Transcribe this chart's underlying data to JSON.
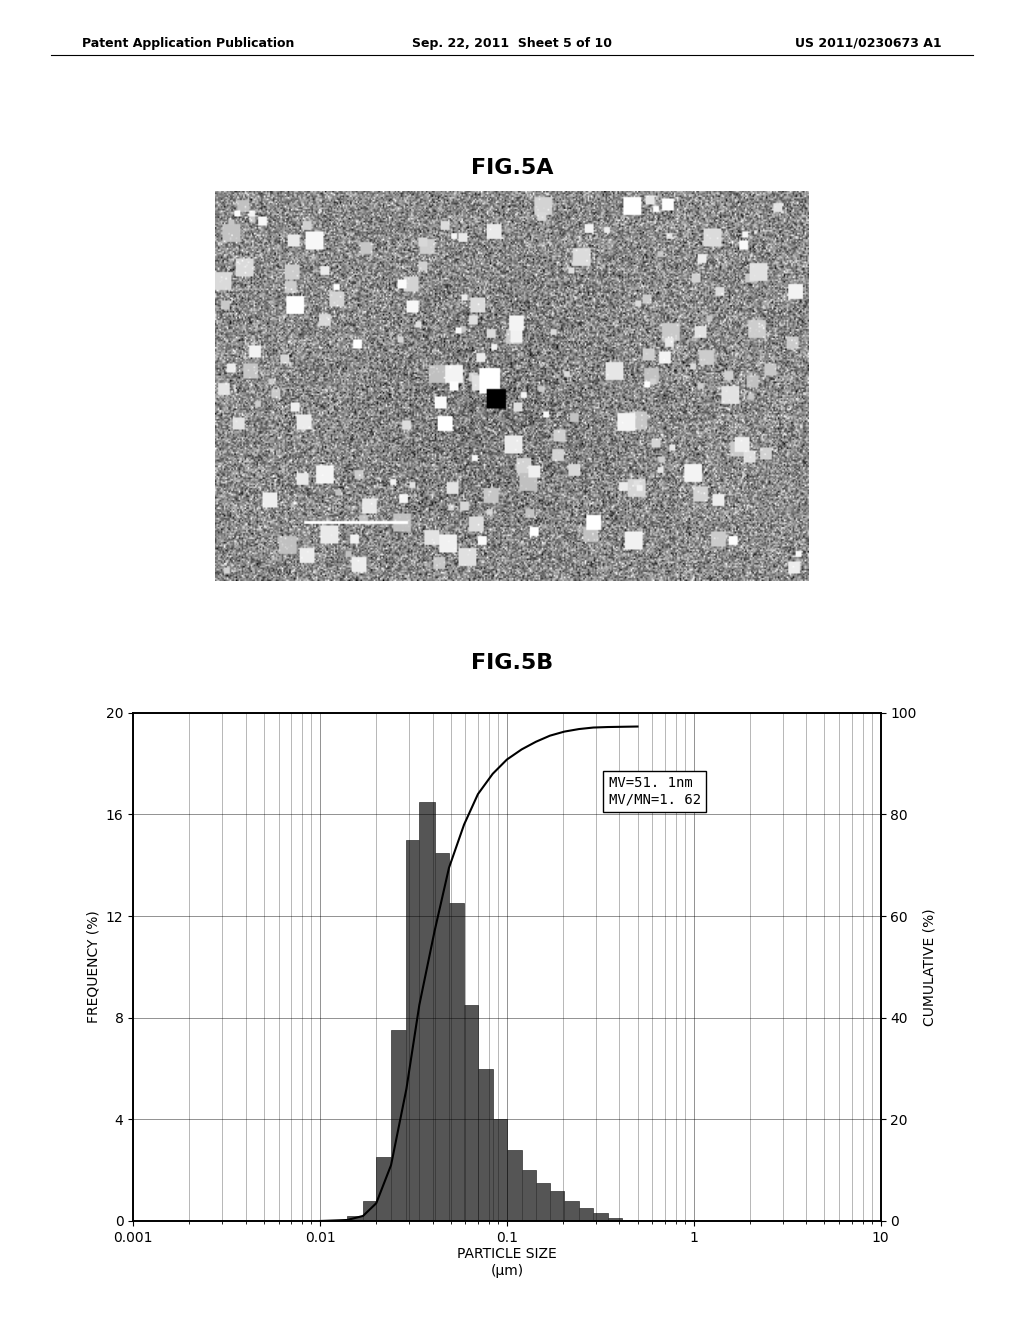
{
  "page_title_left": "Patent Application Publication",
  "page_title_center": "Sep. 22, 2011  Sheet 5 of 10",
  "page_title_right": "US 2011/0230673 A1",
  "fig5a_title": "FIG.5A",
  "fig5b_title": "FIG.5B",
  "background_color": "#ffffff",
  "chart_bg": "#ffffff",
  "bar_color": "#555555",
  "bar_edge_color": "#333333",
  "ylabel_left": "FREQUENCY (%)",
  "ylabel_right": "CUMULATIVE (%)",
  "xlabel": "PARTICLE SIZE",
  "xlabel2": "(μm)",
  "annotation_line1": "MV=51. 1nm",
  "annotation_line2": "MV/MN=1. 62",
  "ylim": [
    0,
    20
  ],
  "xlim_log": [
    -3,
    1
  ],
  "yticks_left": [
    0,
    4,
    8,
    12,
    16,
    20
  ],
  "yticks_right": [
    0,
    20,
    40,
    60,
    80,
    100
  ],
  "xtick_labels": [
    "0.001",
    "0.01",
    "0.1",
    "1",
    "10"
  ],
  "xtick_vals": [
    0.001,
    0.01,
    0.1,
    1,
    10
  ],
  "bar_edges": [
    0.014,
    0.017,
    0.02,
    0.024,
    0.029,
    0.034,
    0.041,
    0.049,
    0.059,
    0.07,
    0.084,
    0.1,
    0.12,
    0.143,
    0.17,
    0.203,
    0.243,
    0.29,
    0.347,
    0.414
  ],
  "bar_heights": [
    0.2,
    0.8,
    2.5,
    7.5,
    15.0,
    16.5,
    14.5,
    12.5,
    8.5,
    6.0,
    4.0,
    2.8,
    2.0,
    1.5,
    1.2,
    0.8,
    0.5,
    0.3,
    0.1,
    0.05
  ],
  "cumulative_x": [
    0.01,
    0.014,
    0.017,
    0.02,
    0.024,
    0.029,
    0.034,
    0.041,
    0.049,
    0.059,
    0.07,
    0.084,
    0.1,
    0.12,
    0.143,
    0.17,
    0.203,
    0.243,
    0.29,
    0.347,
    0.5
  ],
  "cumulative_y": [
    0,
    0.2,
    1.0,
    3.5,
    11.0,
    26.0,
    42.5,
    57.0,
    69.5,
    78.0,
    84.0,
    88.0,
    90.8,
    92.8,
    94.3,
    95.5,
    96.3,
    96.8,
    97.1,
    97.2,
    97.3
  ],
  "noise_seed": 42
}
